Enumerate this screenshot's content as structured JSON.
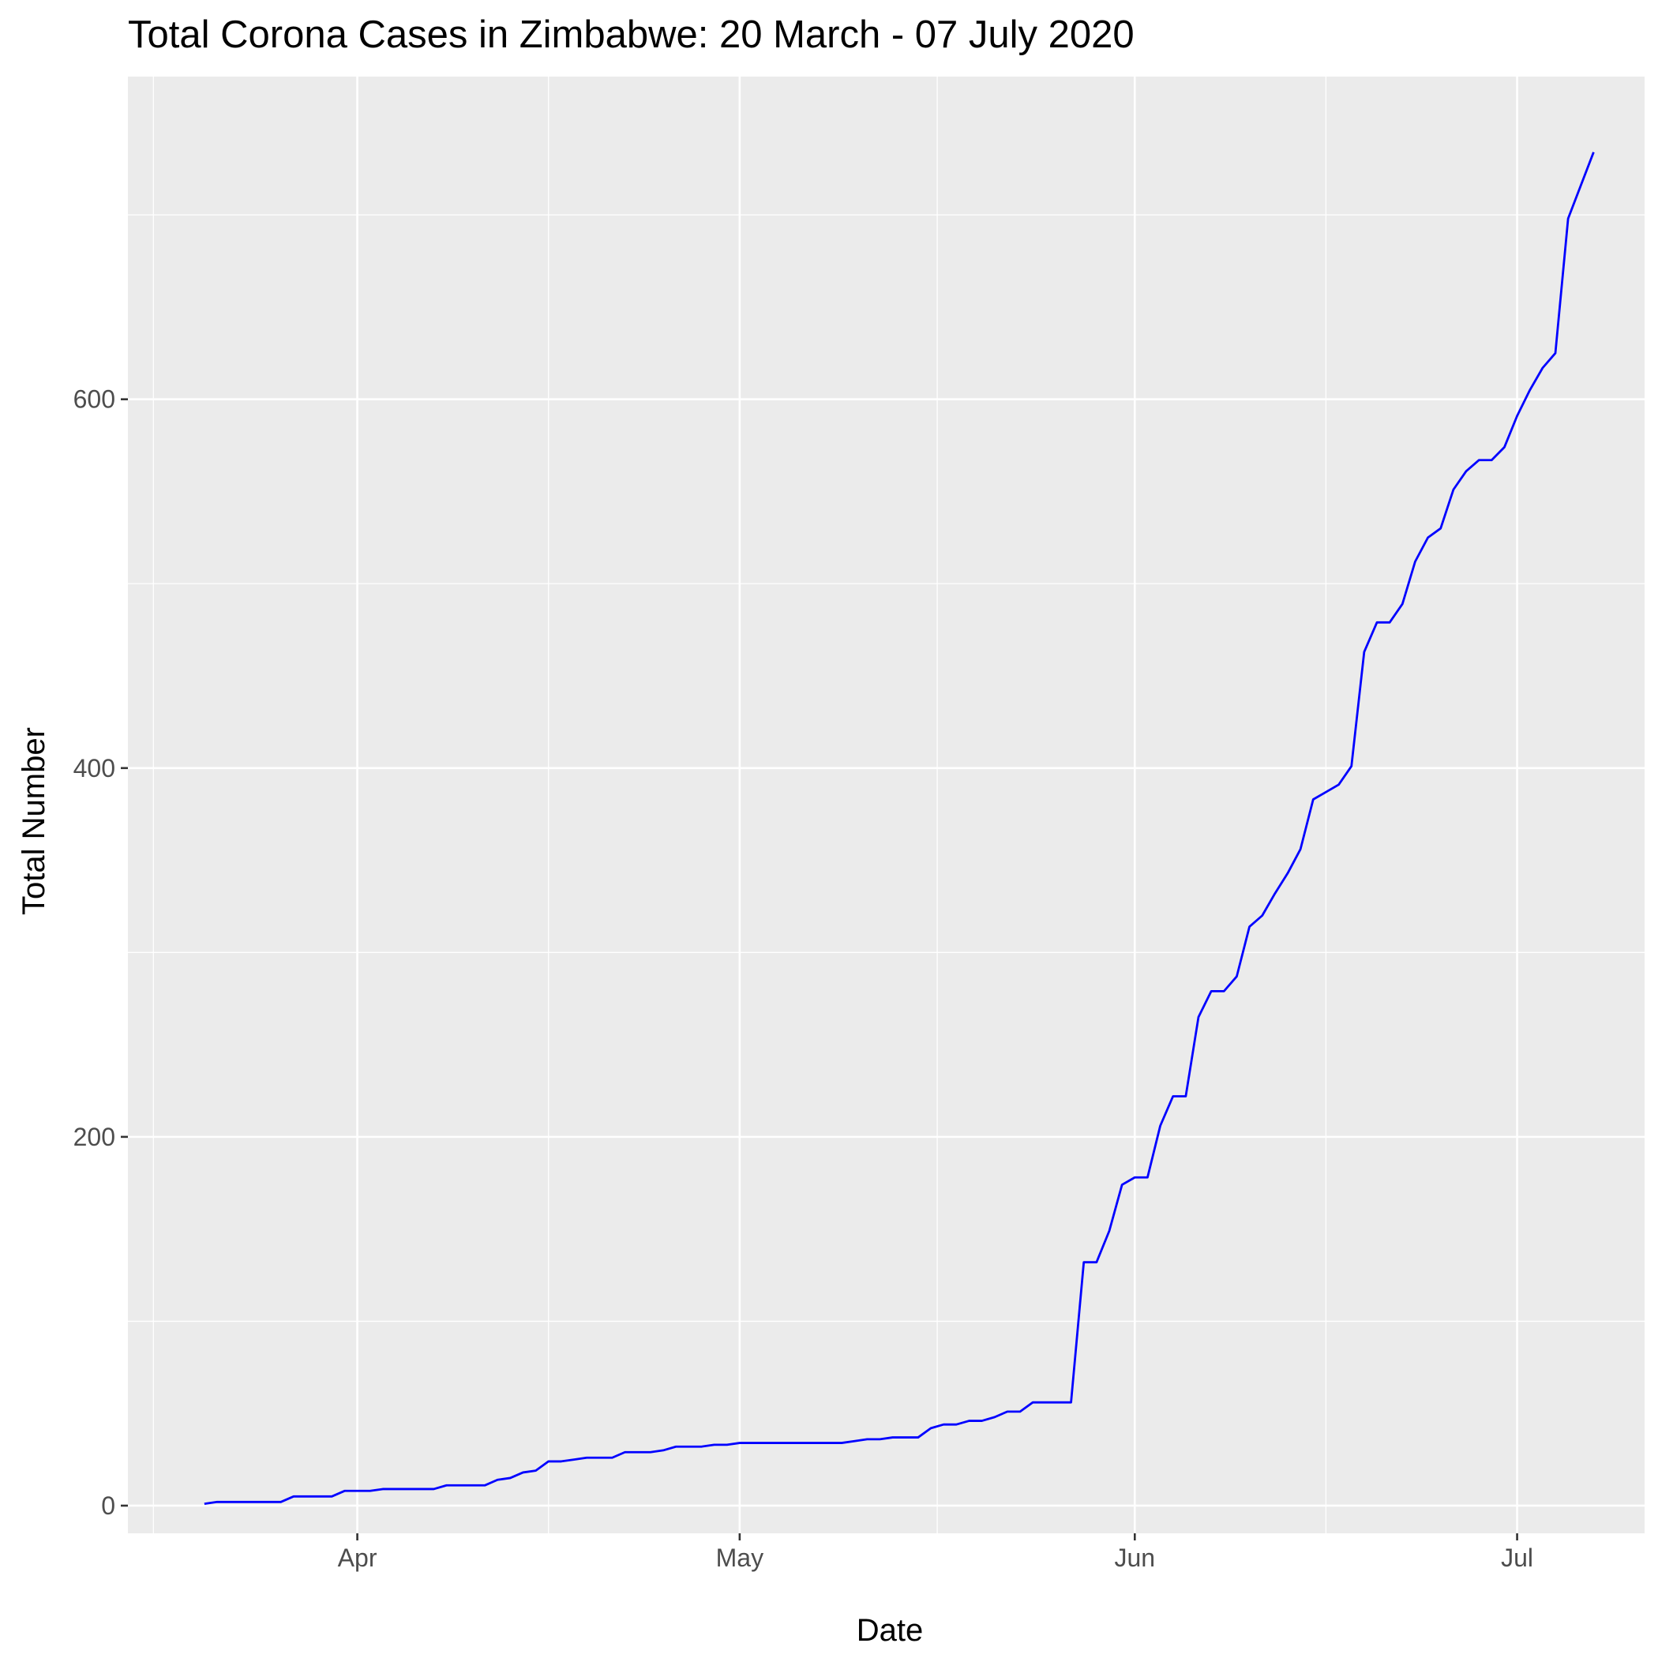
{
  "chart_data": {
    "type": "line",
    "title": "Total Corona Cases in Zimbabwe: 20 March - 07 July 2020",
    "xlabel": "Date",
    "ylabel": "Total Number",
    "x_ticks": [
      {
        "date": "2020-04-01",
        "label": "Apr"
      },
      {
        "date": "2020-05-01",
        "label": "May"
      },
      {
        "date": "2020-06-01",
        "label": "Jun"
      },
      {
        "date": "2020-07-01",
        "label": "Jul"
      }
    ],
    "y_ticks": [
      0,
      200,
      400,
      600
    ],
    "xlim": [
      "2020-03-14",
      "2020-07-11"
    ],
    "ylim": [
      -15,
      775
    ],
    "grid": true,
    "background_color": "#ebebeb",
    "line_color": "#0000ff",
    "series": [
      {
        "x": [
          "2020-03-20",
          "2020-03-21",
          "2020-03-22",
          "2020-03-23",
          "2020-03-24",
          "2020-03-25",
          "2020-03-26",
          "2020-03-27",
          "2020-03-28",
          "2020-03-29",
          "2020-03-30",
          "2020-03-31",
          "2020-04-01",
          "2020-04-02",
          "2020-04-03",
          "2020-04-04",
          "2020-04-05",
          "2020-04-06",
          "2020-04-07",
          "2020-04-08",
          "2020-04-09",
          "2020-04-10",
          "2020-04-11",
          "2020-04-12",
          "2020-04-13",
          "2020-04-14",
          "2020-04-15",
          "2020-04-16",
          "2020-04-17",
          "2020-04-18",
          "2020-04-19",
          "2020-04-20",
          "2020-04-21",
          "2020-04-22",
          "2020-04-23",
          "2020-04-24",
          "2020-04-25",
          "2020-04-26",
          "2020-04-27",
          "2020-04-28",
          "2020-04-29",
          "2020-04-30",
          "2020-05-01",
          "2020-05-02",
          "2020-05-03",
          "2020-05-04",
          "2020-05-05",
          "2020-05-06",
          "2020-05-07",
          "2020-05-08",
          "2020-05-09",
          "2020-05-10",
          "2020-05-11",
          "2020-05-12",
          "2020-05-13",
          "2020-05-14",
          "2020-05-15",
          "2020-05-16",
          "2020-05-17",
          "2020-05-18",
          "2020-05-19",
          "2020-05-20",
          "2020-05-21",
          "2020-05-22",
          "2020-05-23",
          "2020-05-24",
          "2020-05-25",
          "2020-05-26",
          "2020-05-27",
          "2020-05-28",
          "2020-05-29",
          "2020-05-30",
          "2020-05-31",
          "2020-06-01",
          "2020-06-02",
          "2020-06-03",
          "2020-06-04",
          "2020-06-05",
          "2020-06-06",
          "2020-06-07",
          "2020-06-08",
          "2020-06-09",
          "2020-06-10",
          "2020-06-11",
          "2020-06-12",
          "2020-06-13",
          "2020-06-14",
          "2020-06-15",
          "2020-06-16",
          "2020-06-17",
          "2020-06-18",
          "2020-06-19",
          "2020-06-20",
          "2020-06-21",
          "2020-06-22",
          "2020-06-23",
          "2020-06-24",
          "2020-06-25",
          "2020-06-26",
          "2020-06-27",
          "2020-06-28",
          "2020-06-29",
          "2020-06-30",
          "2020-07-01",
          "2020-07-02",
          "2020-07-03",
          "2020-07-04",
          "2020-07-05",
          "2020-07-06",
          "2020-07-07"
        ],
        "values": [
          1,
          2,
          2,
          2,
          2,
          2,
          2,
          5,
          5,
          5,
          5,
          8,
          8,
          8,
          9,
          9,
          9,
          9,
          9,
          11,
          11,
          11,
          11,
          14,
          15,
          18,
          19,
          24,
          24,
          25,
          26,
          26,
          26,
          29,
          29,
          29,
          30,
          32,
          32,
          32,
          33,
          33,
          34,
          34,
          34,
          34,
          34,
          34,
          34,
          34,
          34,
          35,
          36,
          36,
          37,
          37,
          37,
          42,
          44,
          44,
          46,
          46,
          48,
          51,
          51,
          56,
          56,
          56,
          56,
          132,
          132,
          149,
          174,
          178,
          178,
          206,
          222,
          222,
          265,
          279,
          279,
          287,
          314,
          320,
          332,
          343,
          356,
          383,
          387,
          391,
          401,
          463,
          479,
          479,
          489,
          512,
          525,
          530,
          551,
          561,
          567,
          567,
          574,
          591,
          605,
          617,
          625,
          698,
          716,
          734
        ]
      }
    ]
  }
}
